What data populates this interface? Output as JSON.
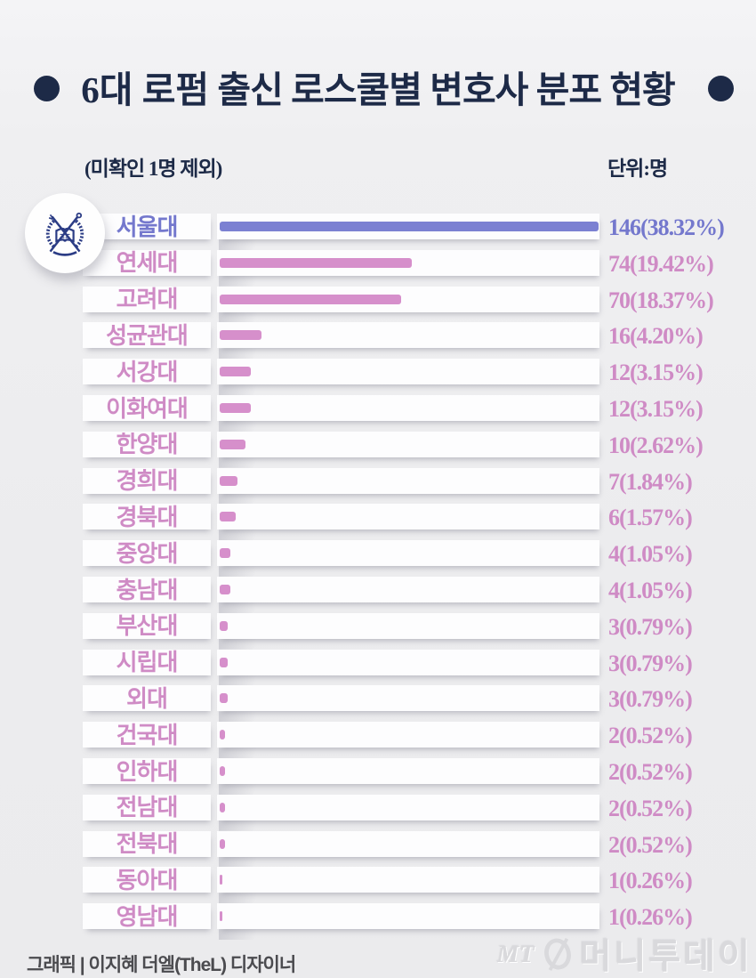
{
  "header": {
    "title_strong": "6대 로펌",
    "title_rest": " 출신 로스쿨별 변호사 분포 현황",
    "note": "(미확인 1명 제외)",
    "unit": "단위:명"
  },
  "badge": {
    "label": "서울대 교표 엠블럼",
    "icon": "snu-emblem-icon"
  },
  "chart_data": {
    "type": "bar",
    "orientation": "horizontal",
    "title": "6대 로펌 출신 로스쿨별 변호사 분포 현황",
    "note": "미확인 1명 제외",
    "unit": "명",
    "xlim": [
      0,
      146
    ],
    "grid": false,
    "legend": "none",
    "categories": [
      "서울대",
      "연세대",
      "고려대",
      "성균관대",
      "서강대",
      "이화여대",
      "한양대",
      "경희대",
      "경북대",
      "중앙대",
      "충남대",
      "부산대",
      "시립대",
      "외대",
      "건국대",
      "인하대",
      "전남대",
      "전북대",
      "동아대",
      "영남대"
    ],
    "values": [
      146,
      74,
      70,
      16,
      12,
      12,
      10,
      7,
      6,
      4,
      4,
      3,
      3,
      3,
      2,
      2,
      2,
      2,
      1,
      1
    ],
    "percents": [
      38.32,
      19.42,
      18.37,
      4.2,
      3.15,
      3.15,
      2.62,
      1.84,
      1.57,
      1.05,
      1.05,
      0.79,
      0.79,
      0.79,
      0.52,
      0.52,
      0.52,
      0.52,
      0.26,
      0.26
    ],
    "value_labels": [
      "146(38.32%)",
      "74(19.42%)",
      "70(18.37%)",
      "16(4.20%)",
      "12(3.15%)",
      "12(3.15%)",
      "10(2.62%)",
      "7(1.84%)",
      "6(1.57%)",
      "4(1.05%)",
      "4(1.05%)",
      "3(0.79%)",
      "3(0.79%)",
      "3(0.79%)",
      "2(0.52%)",
      "2(0.52%)",
      "2(0.52%)",
      "2(0.52%)",
      "1(0.26%)",
      "1(0.26%)"
    ],
    "highlight_index": 0,
    "colors": {
      "highlight_bar": "#7b80d2",
      "highlight_text": "#7478cd",
      "default_bar": "#d68fcb",
      "default_text": "#cf8bc5",
      "title_navy": "#1d2a47"
    }
  },
  "footer": {
    "credit": "그래픽 | 이지혜 더엘(TheL) 디자이너"
  },
  "watermark": {
    "prefix": "MT",
    "logo": "moneytoday-circle-icon",
    "text": "머니투데이"
  }
}
